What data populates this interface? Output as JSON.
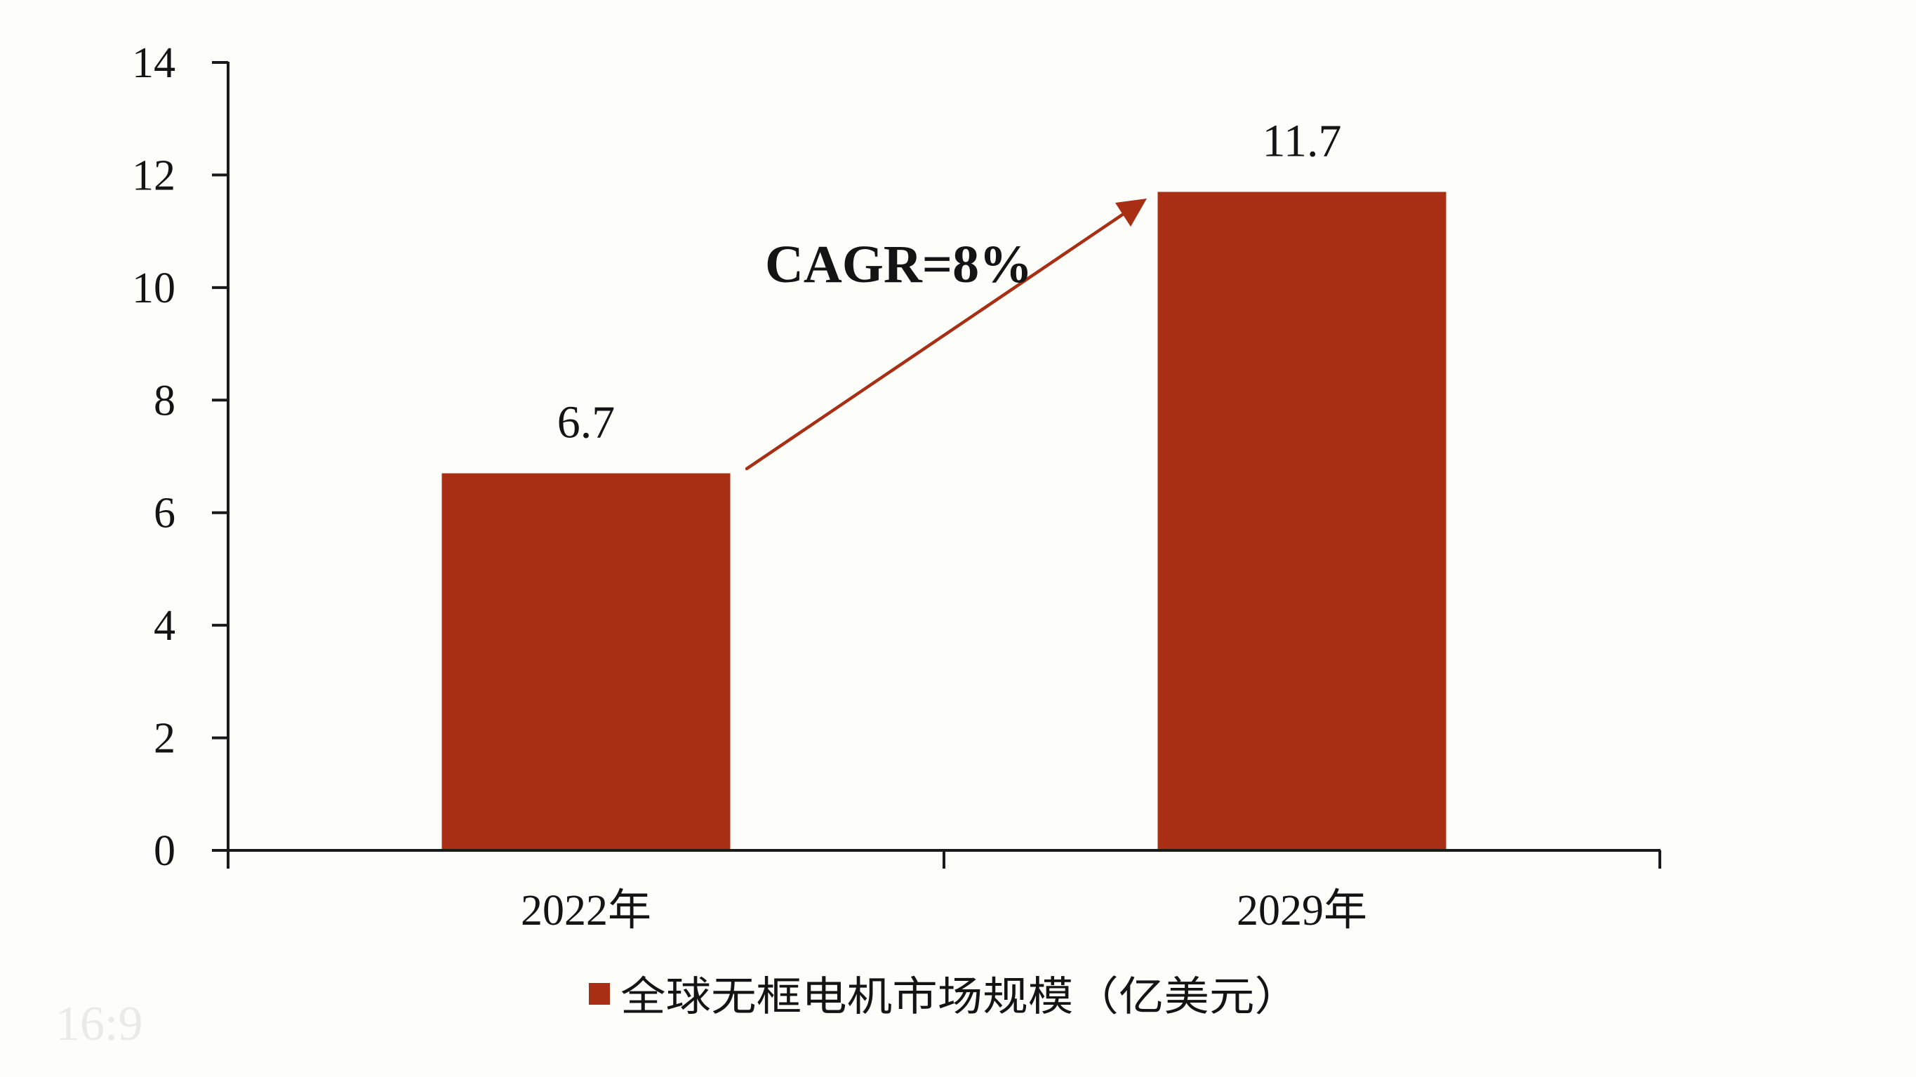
{
  "chart_data": {
    "type": "bar",
    "title": "",
    "xlabel": "",
    "ylabel": "",
    "categories": [
      "2022年",
      "2029年"
    ],
    "series": [
      {
        "name": "全球无框电机市场规模（亿美元）",
        "values": [
          6.7,
          11.7
        ],
        "color": "#a82e14"
      }
    ],
    "data_labels": [
      "6.7",
      "11.7"
    ],
    "ylim": [
      0,
      14
    ],
    "yticks": [
      0,
      2,
      4,
      6,
      8,
      10,
      12,
      14
    ],
    "ytick_labels": [
      "0",
      "2",
      "4",
      "6",
      "8",
      "10",
      "12",
      "14"
    ],
    "grid": false,
    "legend": {
      "position": "bottom",
      "entries": [
        "全球无框电机市场规模（亿美元）"
      ]
    },
    "annotations": [
      {
        "type": "arrow",
        "from_category": "2022年",
        "to_category": "2029年",
        "color": "#a82e14"
      },
      {
        "type": "text",
        "text": "CAGR=8%",
        "bold": true
      }
    ]
  },
  "annotation": {
    "cagr_label": "CAGR=8%"
  },
  "legend": {
    "label": "全球无框电机市场规模（亿美元）",
    "swatch_color": "#a82e14"
  },
  "watermark": {
    "text": "16:9"
  },
  "colors": {
    "bar": "#a82e14",
    "axis": "#1a1a1a",
    "background": "#fdfdf9",
    "watermark": "#ebebe6"
  }
}
